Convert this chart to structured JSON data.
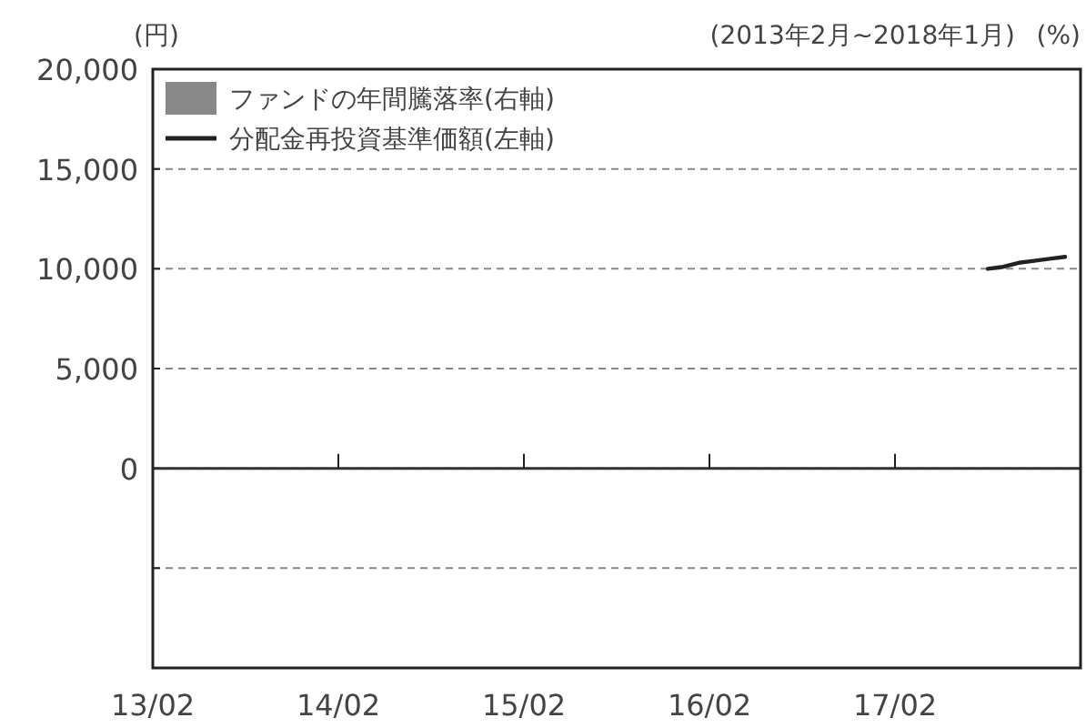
{
  "chart_data": {
    "type": "line",
    "subtitle": "(2013年2月~2018年1月)",
    "ylabel": "(円)",
    "y2label": "(%)",
    "xlim": [
      "2013-02",
      "2018-02"
    ],
    "xticks": [
      {
        "value": "2013-02",
        "label": "13/02"
      },
      {
        "value": "2014-02",
        "label": "14/02"
      },
      {
        "value": "2015-02",
        "label": "15/02"
      },
      {
        "value": "2016-02",
        "label": "16/02"
      },
      {
        "value": "2017-02",
        "label": "17/02"
      }
    ],
    "ylim": [
      -10000,
      20000
    ],
    "yticks": [
      {
        "value": -5000,
        "label": null
      },
      {
        "value": 0,
        "label": "0"
      },
      {
        "value": 5000,
        "label": "5,000"
      },
      {
        "value": 10000,
        "label": "10,000"
      },
      {
        "value": 15000,
        "label": "15,000"
      },
      {
        "value": 20000,
        "label": "20,000"
      }
    ],
    "grid": "y",
    "legend": "top left",
    "ref_lines": [
      {
        "axis": "y",
        "value": 0,
        "label": null,
        "color": "#333333",
        "line_style": "solid"
      }
    ],
    "series": [
      {
        "name": "ファンドの年間騰落率(右軸)",
        "type": "bar",
        "axis": "y2",
        "color": "#888888"
      },
      {
        "name": "分配金再投資基準価額(左軸)",
        "axis": "y",
        "color": "#222222",
        "x": [
          "2017-08",
          "2017-09",
          "2017-10",
          "2017-11",
          "2017-12",
          "2018-01"
        ],
        "values": [
          10000,
          10100,
          10300,
          10400,
          10500,
          10600
        ]
      }
    ]
  }
}
